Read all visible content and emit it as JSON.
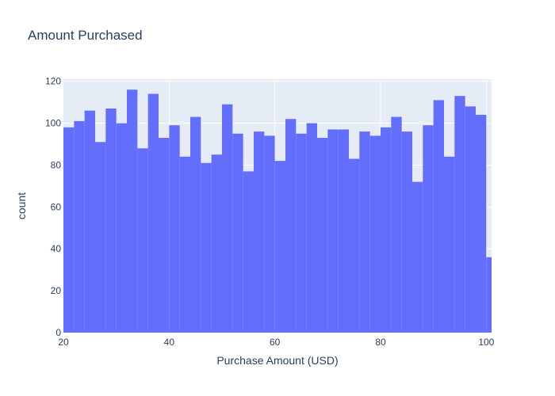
{
  "chart_data": {
    "type": "bar",
    "title": "Amount Purchased",
    "xlabel": "Purchase Amount (USD)",
    "ylabel": "count",
    "xlim": [
      20,
      101
    ],
    "ylim": [
      0,
      121
    ],
    "xticks": [
      20,
      40,
      60,
      80,
      100
    ],
    "yticks": [
      0,
      20,
      40,
      60,
      80,
      100,
      120
    ],
    "bin_width": 2,
    "bin_starts": [
      20,
      22,
      24,
      26,
      28,
      30,
      32,
      34,
      36,
      38,
      40,
      42,
      44,
      46,
      48,
      50,
      52,
      54,
      56,
      58,
      60,
      62,
      64,
      66,
      68,
      70,
      72,
      74,
      76,
      78,
      80,
      82,
      84,
      86,
      88,
      90,
      92,
      94,
      96,
      98,
      100
    ],
    "bin_ends": [
      22,
      24,
      26,
      28,
      30,
      32,
      34,
      36,
      38,
      40,
      42,
      44,
      46,
      48,
      50,
      52,
      54,
      56,
      58,
      60,
      62,
      64,
      66,
      68,
      70,
      72,
      74,
      76,
      78,
      80,
      82,
      84,
      86,
      88,
      90,
      92,
      94,
      96,
      98,
      100,
      101
    ],
    "values": [
      98,
      101,
      106,
      91,
      107,
      100,
      116,
      88,
      114,
      93,
      99,
      84,
      103,
      81,
      85,
      109,
      95,
      77,
      96,
      94,
      82,
      102,
      95,
      100,
      93,
      97,
      97,
      83,
      96,
      94,
      98,
      103,
      96,
      72,
      99,
      111,
      84,
      113,
      108,
      104,
      36
    ],
    "colors": {
      "bar": "#636efa",
      "plot_background": "#e5ecf6",
      "grid": "#ffffff",
      "text": "#2a3f5f"
    },
    "grid": true
  }
}
